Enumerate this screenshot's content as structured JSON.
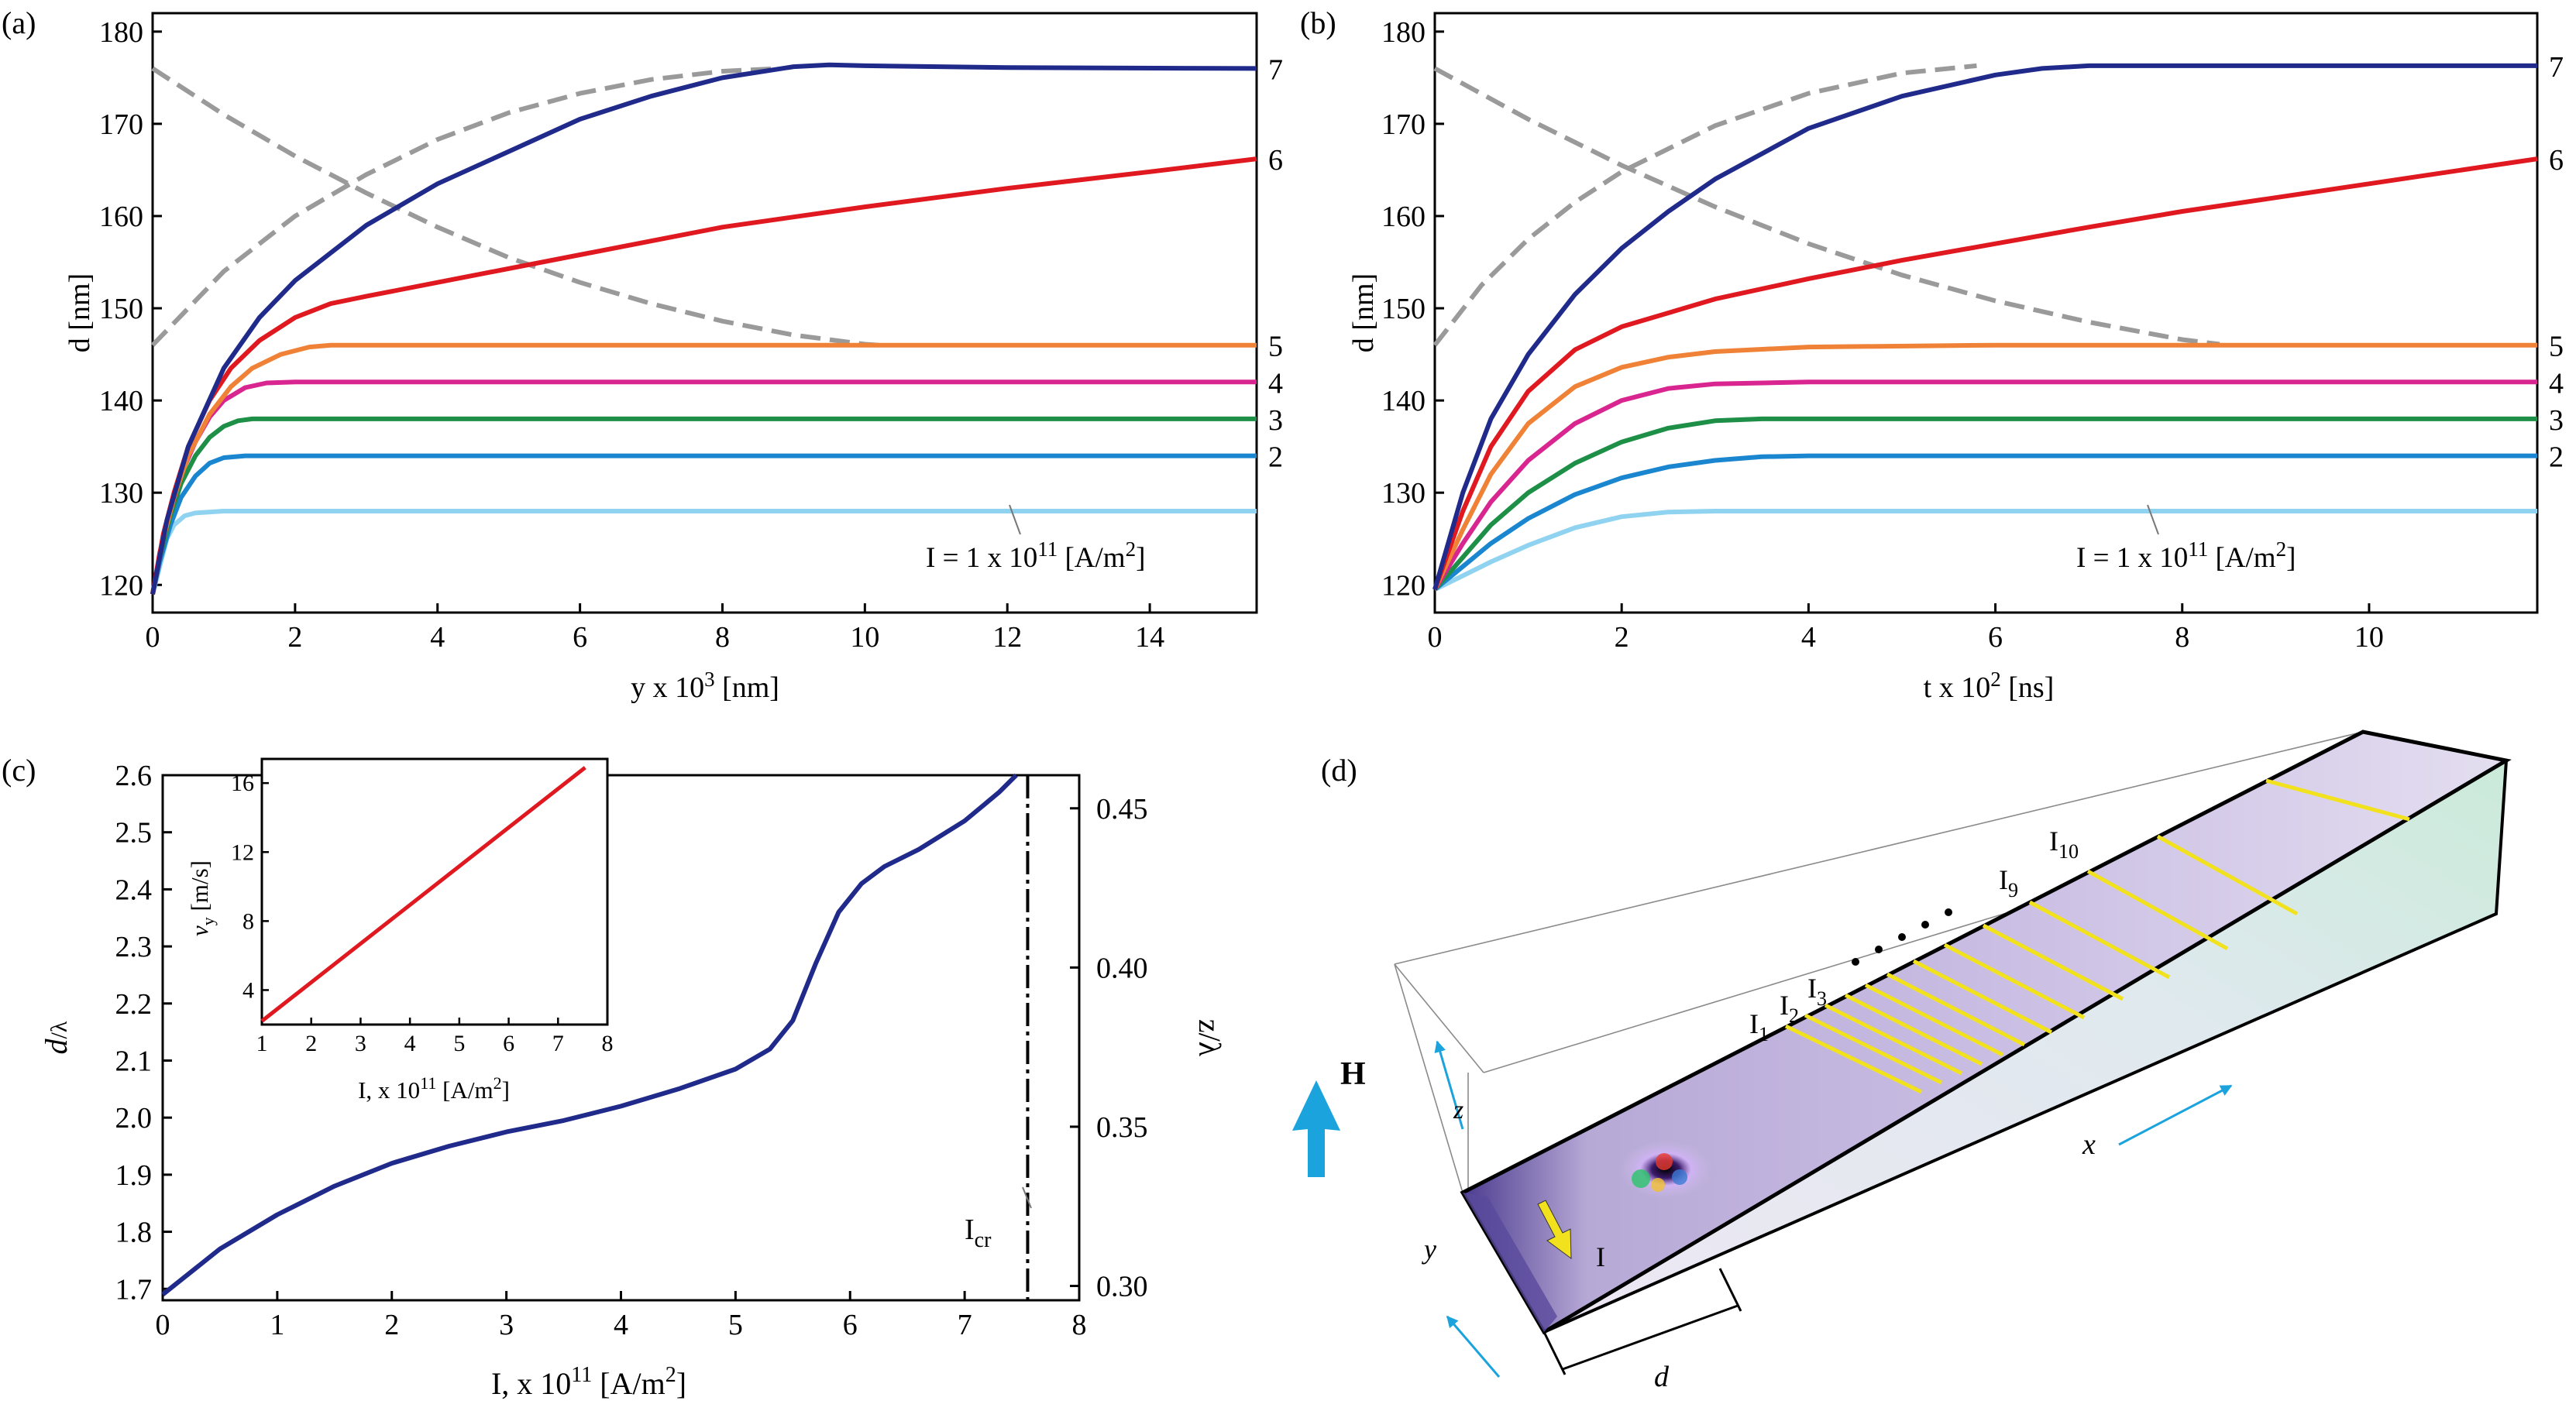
{
  "colors": {
    "curve1": "#8fd3f0",
    "curve2": "#1a86cf",
    "curve3": "#1e8f47",
    "curve4": "#d9258f",
    "curve5": "#ef8236",
    "curve6": "#e0181f",
    "curve7": "#1f2a8a",
    "guide": "#9a9a9a",
    "black": "#000000",
    "inset_line": "#e0181f",
    "yellow": "#f2e21e",
    "cyan": "#1aa3dd"
  },
  "chart_data": [
    {
      "panel": "(a)",
      "type": "line",
      "xlabel_main": "y x 10",
      "xlabel_sup": "3",
      "xlabel_tail": " [nm]",
      "ylabel": "d [nm]",
      "xlim": [
        0,
        15.5
      ],
      "ylim": [
        117,
        182
      ],
      "xticks": [
        "0",
        "2",
        "4",
        "6",
        "8",
        "10",
        "12",
        "14"
      ],
      "yticks": [
        "120",
        "130",
        "140",
        "150",
        "160",
        "170",
        "180"
      ],
      "annotation_main": "I = 1 x 10",
      "annotation_sup": "11",
      "annotation_tail": " [A/m",
      "annotation_sup2": "2",
      "annotation_end": "]",
      "series": [
        {
          "name": "I = 1 x 10^11 [A/m^2]",
          "label": "",
          "color_key": "curve1",
          "x": [
            0,
            0.1,
            0.2,
            0.3,
            0.45,
            0.6,
            1.0,
            2,
            5,
            10,
            15.5
          ],
          "y": [
            119,
            122,
            125,
            126.5,
            127.5,
            127.8,
            128,
            128,
            128,
            128,
            128
          ]
        },
        {
          "name": "2",
          "label": "2",
          "color_key": "curve2",
          "x": [
            0,
            0.1,
            0.25,
            0.4,
            0.6,
            0.8,
            1.0,
            1.3,
            2,
            5,
            10,
            15.5
          ],
          "y": [
            119,
            122.5,
            126.5,
            129.5,
            131.8,
            133.2,
            133.8,
            134,
            134,
            134,
            134,
            134
          ]
        },
        {
          "name": "3",
          "label": "3",
          "color_key": "curve3",
          "x": [
            0,
            0.1,
            0.25,
            0.4,
            0.6,
            0.8,
            1.0,
            1.2,
            1.4,
            2,
            5,
            10,
            15.5
          ],
          "y": [
            119,
            123,
            127.5,
            131,
            134,
            136,
            137.2,
            137.8,
            138,
            138,
            138,
            138,
            138
          ]
        },
        {
          "name": "4",
          "label": "4",
          "color_key": "curve4",
          "x": [
            0,
            0.1,
            0.25,
            0.4,
            0.6,
            0.8,
            1.0,
            1.3,
            1.6,
            2,
            5,
            10,
            15.5
          ],
          "y": [
            119,
            123.5,
            128,
            132,
            135.5,
            138.2,
            140,
            141.4,
            141.9,
            142,
            142,
            142,
            142
          ]
        },
        {
          "name": "5",
          "label": "5",
          "color_key": "curve5",
          "x": [
            0,
            0.15,
            0.3,
            0.5,
            0.8,
            1.1,
            1.4,
            1.8,
            2.2,
            2.5,
            5,
            10,
            15.5
          ],
          "y": [
            119,
            125,
            129.5,
            134,
            138.5,
            141.5,
            143.5,
            145,
            145.8,
            146,
            146,
            146,
            146
          ]
        },
        {
          "name": "6",
          "label": "6",
          "color_key": "curve6",
          "x": [
            0,
            0.15,
            0.3,
            0.5,
            0.8,
            1.1,
            1.5,
            2,
            2.5,
            3,
            4,
            6,
            8,
            10,
            12,
            14,
            15.5
          ],
          "y": [
            119,
            125.5,
            130,
            135,
            140,
            143.5,
            146.5,
            149,
            150.5,
            151.3,
            152.8,
            155.8,
            158.8,
            161,
            163,
            164.8,
            166.2
          ]
        },
        {
          "name": "7",
          "label": "7",
          "color_key": "curve7",
          "x": [
            0,
            0.2,
            0.5,
            1,
            1.5,
            2,
            3,
            4,
            5,
            6,
            7,
            8,
            9,
            9.5,
            10,
            12,
            15.5
          ],
          "y": [
            119,
            127,
            135,
            143.5,
            149,
            153,
            159,
            163.5,
            167,
            170.5,
            173,
            175,
            176.2,
            176.4,
            176.3,
            176.1,
            176
          ]
        }
      ],
      "guides": [
        {
          "x": [
            0,
            1,
            2,
            3,
            4,
            5,
            6,
            7,
            8,
            8.8
          ],
          "y": [
            146,
            154,
            160,
            164.5,
            168.3,
            171.2,
            173.3,
            174.8,
            175.7,
            176
          ]
        },
        {
          "x": [
            0,
            1,
            2,
            3,
            4,
            5,
            6,
            7,
            8,
            9,
            10,
            10.2
          ],
          "y": [
            176,
            171,
            166.5,
            162.5,
            158.8,
            155.5,
            152.8,
            150.5,
            148.6,
            147.1,
            146.1,
            146
          ]
        }
      ]
    },
    {
      "panel": "(b)",
      "type": "line",
      "xlabel_main": "t x 10",
      "xlabel_sup": "2",
      "xlabel_tail": " [ns]",
      "ylabel": "d [nm]",
      "xlim": [
        0,
        11.8
      ],
      "ylim": [
        117,
        182
      ],
      "xticks": [
        "0",
        "2",
        "4",
        "6",
        "8",
        "10"
      ],
      "yticks": [
        "120",
        "130",
        "140",
        "150",
        "160",
        "170",
        "180"
      ],
      "annotation_main": "I = 1 x 10",
      "annotation_sup": "11",
      "annotation_tail": " [A/m",
      "annotation_sup2": "2",
      "annotation_end": "]",
      "series": [
        {
          "name": "I = 1 x 10^11 [A/m^2]",
          "label": "",
          "color_key": "curve1",
          "x": [
            0,
            0.3,
            0.6,
            1.0,
            1.5,
            2.0,
            2.5,
            3,
            6,
            11.8
          ],
          "y": [
            119.5,
            121,
            122.5,
            124.3,
            126.2,
            127.4,
            127.9,
            128,
            128,
            128
          ]
        },
        {
          "name": "2",
          "label": "2",
          "color_key": "curve2",
          "x": [
            0,
            0.3,
            0.6,
            1.0,
            1.5,
            2.0,
            2.5,
            3.0,
            3.5,
            4,
            6,
            11.8
          ],
          "y": [
            119.5,
            122,
            124.5,
            127.2,
            129.8,
            131.6,
            132.8,
            133.5,
            133.9,
            134,
            134,
            134
          ]
        },
        {
          "name": "3",
          "label": "3",
          "color_key": "curve3",
          "x": [
            0,
            0.3,
            0.6,
            1.0,
            1.5,
            2.0,
            2.5,
            3.0,
            3.5,
            6,
            11.8
          ],
          "y": [
            119.5,
            123,
            126.5,
            130,
            133.2,
            135.5,
            137,
            137.8,
            138,
            138,
            138
          ]
        },
        {
          "name": "4",
          "label": "4",
          "color_key": "curve4",
          "x": [
            0,
            0.3,
            0.6,
            1.0,
            1.5,
            2.0,
            2.5,
            3.0,
            4,
            11.8
          ],
          "y": [
            119.5,
            124.5,
            129,
            133.5,
            137.5,
            140,
            141.3,
            141.8,
            142,
            142
          ]
        },
        {
          "name": "5",
          "label": "5",
          "color_key": "curve5",
          "x": [
            0,
            0.3,
            0.6,
            1.0,
            1.5,
            2.0,
            2.5,
            3.0,
            4.0,
            6,
            11.8
          ],
          "y": [
            119.5,
            126,
            132,
            137.5,
            141.5,
            143.6,
            144.7,
            145.3,
            145.8,
            146,
            146
          ]
        },
        {
          "name": "6",
          "label": "6",
          "color_key": "curve6",
          "x": [
            0,
            0.3,
            0.6,
            1.0,
            1.5,
            2.0,
            3,
            4,
            5,
            6,
            7,
            8,
            9,
            10,
            11,
            11.8
          ],
          "y": [
            119.5,
            128,
            135,
            141,
            145.5,
            148,
            151,
            153.2,
            155.2,
            157,
            158.8,
            160.5,
            162,
            163.5,
            165,
            166.2
          ]
        },
        {
          "name": "7",
          "label": "7",
          "color_key": "curve7",
          "x": [
            0,
            0.3,
            0.6,
            1.0,
            1.5,
            2.0,
            2.5,
            3,
            4,
            5,
            6,
            6.5,
            7,
            8,
            11.8
          ],
          "y": [
            119.5,
            130,
            138,
            145,
            151.5,
            156.5,
            160.5,
            164,
            169.5,
            173,
            175.3,
            176,
            176.3,
            176.3,
            176.3
          ]
        }
      ],
      "guides": [
        {
          "x": [
            0,
            0.5,
            1,
            1.5,
            2,
            3,
            4,
            5,
            5.8
          ],
          "y": [
            146,
            152.5,
            157.5,
            161.5,
            164.8,
            169.8,
            173.3,
            175.5,
            176.3
          ]
        },
        {
          "x": [
            0,
            1,
            2,
            3,
            4,
            5,
            6,
            7,
            8,
            8.4
          ],
          "y": [
            176,
            170.5,
            165.5,
            161,
            157,
            153.6,
            150.8,
            148.5,
            146.6,
            146.1
          ]
        }
      ]
    },
    {
      "panel": "(c)",
      "type": "line",
      "xlabel_main": "I, x 10",
      "xlabel_sup": "11",
      "xlabel_tail": " [A/m",
      "xlabel_sup2": "2",
      "xlabel_end": "]",
      "ylabel_italic": "d",
      "ylabel_tail": "/λ",
      "ylabel_right": "z/λ",
      "xlim": [
        0,
        8
      ],
      "ylim": [
        1.68,
        2.6
      ],
      "xticks": [
        "0",
        "1",
        "2",
        "3",
        "4",
        "5",
        "6",
        "7",
        "8"
      ],
      "yticks": [
        "1.7",
        "1.8",
        "1.9",
        "2.0",
        "2.1",
        "2.2",
        "2.3",
        "2.4",
        "2.5",
        "2.6"
      ],
      "yticks_right": [
        "0.30",
        "0.35",
        "0.40",
        "0.45"
      ],
      "yright_values": [
        0.3,
        0.35,
        0.4,
        0.45
      ],
      "yright_lim": [
        0.2955,
        0.4604
      ],
      "critical_line_x": 7.55,
      "critical_label": "I",
      "critical_label_sub": "cr",
      "series": [
        {
          "name": "d/λ",
          "color_key": "curve7",
          "x": [
            0,
            0.5,
            1,
            1.5,
            2,
            2.5,
            3,
            3.5,
            4,
            4.5,
            5,
            5.3,
            5.5,
            5.7,
            5.9,
            6.1,
            6.3,
            6.6,
            7,
            7.3,
            7.45
          ],
          "y": [
            1.69,
            1.77,
            1.83,
            1.88,
            1.92,
            1.95,
            1.975,
            1.995,
            2.02,
            2.05,
            2.085,
            2.12,
            2.17,
            2.27,
            2.36,
            2.41,
            2.44,
            2.47,
            2.52,
            2.57,
            2.6
          ]
        }
      ],
      "inset": {
        "type": "line",
        "xlabel_main": "I, x 10",
        "xlabel_sup": "11",
        "xlabel_tail": " [A/m",
        "xlabel_sup2": "2",
        "xlabel_end": "]",
        "ylabel_main": "v",
        "ylabel_sub": "y",
        "ylabel_tail": " [m/s]",
        "xlim": [
          1,
          8
        ],
        "ylim": [
          2,
          17.4
        ],
        "xticks": [
          "1",
          "2",
          "3",
          "4",
          "5",
          "6",
          "7",
          "8"
        ],
        "yticks": [
          "4",
          "8",
          "12",
          "16"
        ],
        "series": [
          {
            "name": "v_y",
            "color_key": "inset_line",
            "x": [
              1,
              7.55
            ],
            "y": [
              2.2,
              16.9
            ]
          }
        ]
      }
    }
  ],
  "panel_d": {
    "label": "(d)",
    "h_label": "H",
    "z_label": "z",
    "y_label": "y",
    "x_label": "x",
    "d_label": "d",
    "i_arrow_label": "I",
    "current_labels": [
      {
        "main": "I",
        "sub": "1"
      },
      {
        "main": "I",
        "sub": "2"
      },
      {
        "main": "I",
        "sub": "3"
      },
      {
        "main": "I",
        "sub": "9"
      },
      {
        "main": "I",
        "sub": "10"
      }
    ]
  }
}
